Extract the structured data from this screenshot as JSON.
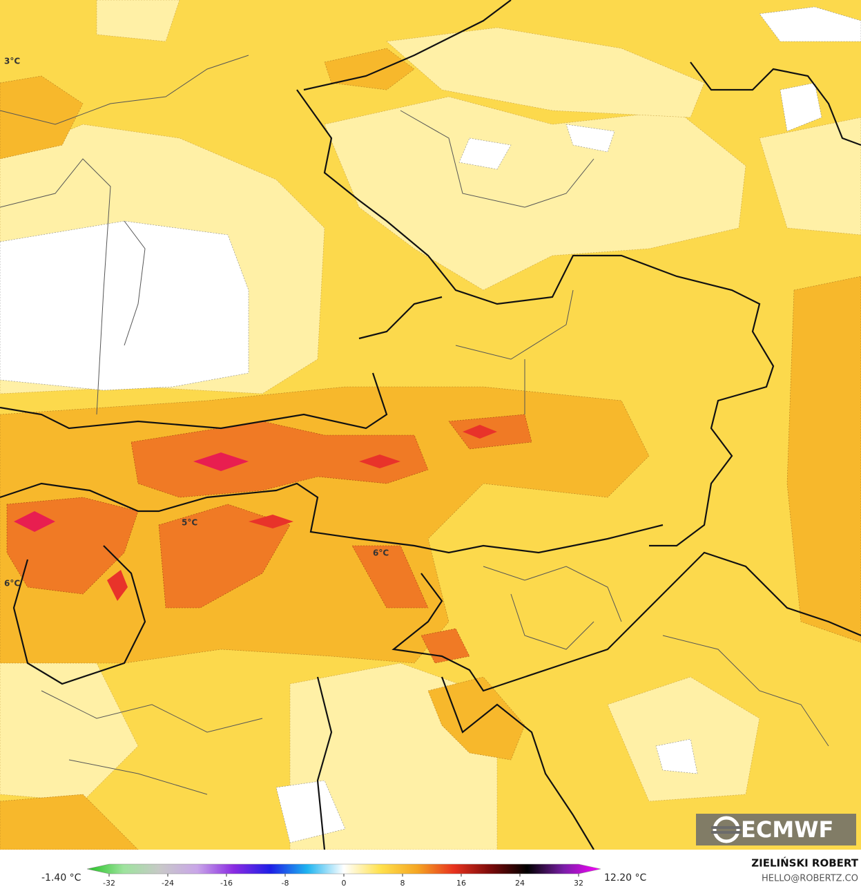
{
  "map": {
    "contour_labels": [
      "3°C",
      "5°C",
      "6°C",
      "6°C"
    ],
    "logo": "ECMWF",
    "colorbar": {
      "min_label": "-1.40 °C",
      "max_label": "12.20 °C",
      "range": [
        -32,
        32
      ],
      "ticks": [
        -32,
        -24,
        -16,
        -8,
        0,
        8,
        16,
        24,
        32
      ],
      "colors": [
        "#22c322",
        "#9ee39e",
        "#c8c8c8",
        "#c9a6e8",
        "#8a2be2",
        "#1e1ee6",
        "#1eb4f0",
        "#ffffff",
        "#ffe14d",
        "#f5a623",
        "#e8321e",
        "#7a0a0a",
        "#000000",
        "#7a1ea8",
        "#ff00ff"
      ]
    },
    "author": "ZIELIŃSKI ROBERT",
    "contact": "HELLO@ROBERTZ.CO"
  }
}
